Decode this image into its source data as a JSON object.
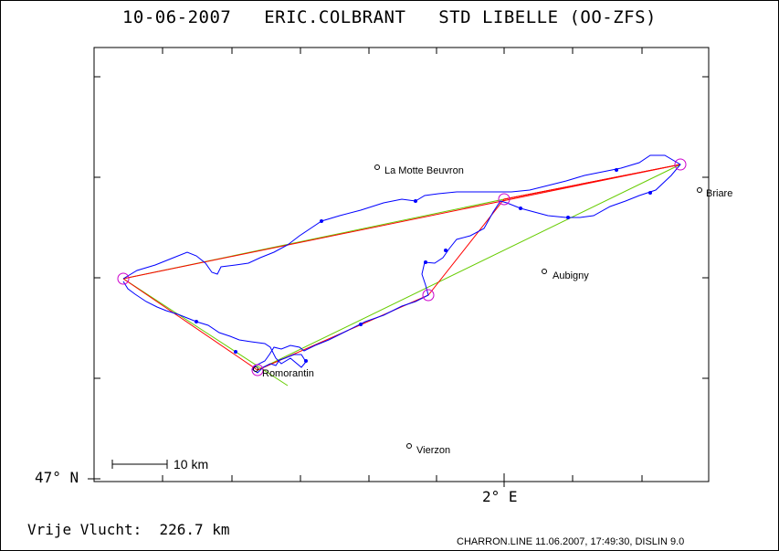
{
  "header": {
    "title": "10-06-2007   ERIC.COLBRANT   STD LIBELLE (OO-ZFS)"
  },
  "axes": {
    "latitude_label": "47° N",
    "longitude_label": "2° E"
  },
  "scale_bar": {
    "label": "10 km"
  },
  "towns": [
    {
      "name": "La Motte Beuvron"
    },
    {
      "name": "Briare"
    },
    {
      "name": "Aubigny"
    },
    {
      "name": "Romorantin"
    },
    {
      "name": "Vierzon"
    }
  ],
  "flight": {
    "distance_label": "Vrije Vlucht:  226.7 km",
    "track_color": "#0000ff",
    "task_color": "#ff0000",
    "secondary_color": "#66cc00",
    "turnpoint_color": "#cc00cc"
  },
  "footer": {
    "text": "CHARRON.LINE 11.06.2007, 17:49:30, DISLIN 9.0"
  }
}
